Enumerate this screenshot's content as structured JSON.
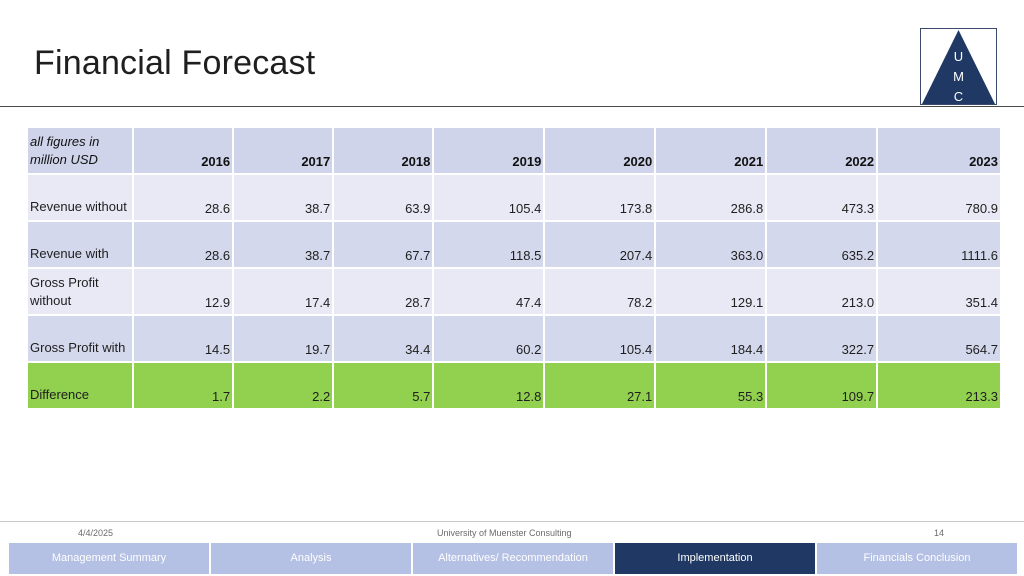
{
  "slide": {
    "title": "Financial Forecast",
    "logo_letters": [
      "U",
      "M",
      "C"
    ]
  },
  "table": {
    "corner_label": "all figures in million USD",
    "years": [
      "2016",
      "2017",
      "2018",
      "2019",
      "2020",
      "2021",
      "2022",
      "2023"
    ],
    "rows": [
      {
        "label": "Revenue without",
        "values": [
          "28.6",
          "38.7",
          "63.9",
          "105.4",
          "173.8",
          "286.8",
          "473.3",
          "780.9"
        ]
      },
      {
        "label": "Revenue with",
        "values": [
          "28.6",
          "38.7",
          "67.7",
          "118.5",
          "207.4",
          "363.0",
          "635.2",
          "1111.6"
        ]
      },
      {
        "label": "Gross Profit without",
        "values": [
          "12.9",
          "17.4",
          "28.7",
          "47.4",
          "78.2",
          "129.1",
          "213.0",
          "351.4"
        ]
      },
      {
        "label": "Gross Profit with",
        "values": [
          "14.5",
          "19.7",
          "34.4",
          "60.2",
          "105.4",
          "184.4",
          "322.7",
          "564.7"
        ]
      },
      {
        "label": "Difference",
        "values": [
          "1.7",
          "2.2",
          "5.7",
          "12.8",
          "27.1",
          "55.3",
          "109.7",
          "213.3"
        ]
      }
    ]
  },
  "footer": {
    "date": "4/4/2025",
    "organization": "University of Muenster Consulting",
    "page_number": "14"
  },
  "nav": {
    "items": [
      {
        "label": "Management Summary",
        "active": false
      },
      {
        "label": "Analysis",
        "active": false
      },
      {
        "label": "Alternatives/ Recommendation",
        "active": false
      },
      {
        "label": "Implementation",
        "active": true
      },
      {
        "label": "Financials Conclusion",
        "active": false
      }
    ]
  },
  "colors": {
    "header_row": "#cfd4ea",
    "row_light": "#e8e9f5",
    "row_base": "#d4d8ec",
    "difference_row": "#92d050",
    "nav_inactive": "#b4c0e4",
    "nav_active": "#1f3864",
    "logo": "#1f3864"
  }
}
